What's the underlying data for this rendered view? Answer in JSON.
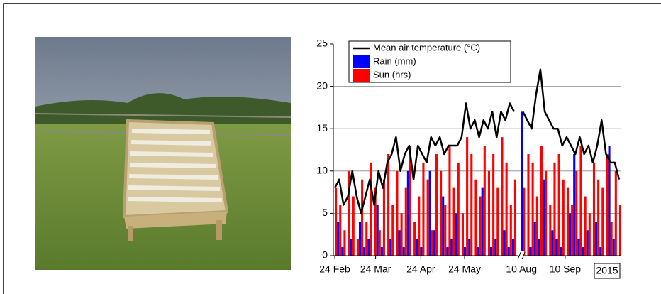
{
  "chart_data": {
    "type": "combo",
    "legend": "upper left",
    "annotation": "2015",
    "xlim": [
      -1,
      196
    ],
    "xticks": [
      {
        "value": 0,
        "label": "24 Feb"
      },
      {
        "value": 28,
        "label": "24 Mar"
      },
      {
        "value": 59,
        "label": "24 Apr"
      },
      {
        "value": 89,
        "label": "24 May"
      },
      {
        "value": 128,
        "label": "10 Aug"
      },
      {
        "value": 158,
        "label": "10 Sep"
      }
    ],
    "ylim": [
      0,
      25
    ],
    "yticks": [
      0,
      5,
      10,
      15,
      20,
      25
    ],
    "grid": true,
    "x": [
      0,
      3,
      6,
      9,
      12,
      15,
      18,
      21,
      24,
      27,
      30,
      33,
      36,
      39,
      42,
      45,
      48,
      51,
      54,
      57,
      60,
      63,
      66,
      69,
      72,
      75,
      78,
      81,
      84,
      87,
      90,
      93,
      96,
      99,
      102,
      105,
      108,
      111,
      114,
      117,
      120,
      123,
      126,
      129,
      132,
      135,
      138,
      141,
      144,
      147,
      150,
      153,
      156,
      159,
      162,
      165,
      168,
      171,
      174,
      177,
      180,
      183,
      186,
      189,
      192,
      195
    ],
    "series": [
      {
        "name": "Mean air temperature (°C)",
        "type": "line",
        "color": "#000000",
        "values": [
          8,
          9,
          6,
          7,
          10,
          7,
          5,
          7,
          9,
          6,
          10,
          8,
          11,
          12,
          14,
          10,
          12,
          13,
          9,
          13,
          12,
          11,
          14,
          13,
          14,
          12,
          13,
          13,
          13,
          14,
          18,
          15,
          16,
          14,
          16,
          15,
          17,
          14,
          17,
          16,
          18,
          17,
          null,
          17,
          16,
          15,
          19,
          22,
          17,
          16,
          15,
          15,
          13,
          14,
          13,
          12,
          14,
          12,
          13,
          11,
          13,
          16,
          12,
          11,
          11,
          9
        ]
      },
      {
        "name": "Rain (mm)",
        "type": "bar",
        "color": "#0000ff",
        "values": [
          0,
          4,
          1,
          0,
          2,
          0,
          4,
          1,
          2,
          0,
          6,
          1,
          0,
          2,
          0,
          3,
          1,
          10,
          0,
          2,
          1,
          0,
          10,
          3,
          0,
          7,
          1,
          2,
          5,
          0,
          1,
          2,
          0,
          1,
          8,
          0,
          1,
          2,
          0,
          3,
          1,
          2,
          null,
          17,
          0,
          1,
          4,
          2,
          9,
          0,
          3,
          2,
          1,
          0,
          5,
          12,
          2,
          1,
          3,
          0,
          4,
          1,
          0,
          13,
          2,
          0
        ]
      },
      {
        "name": "Sun (hrs)",
        "type": "bar",
        "color": "#ff0000",
        "values": [
          8,
          6,
          3,
          10,
          7,
          2,
          9,
          4,
          11,
          8,
          3,
          9,
          12,
          6,
          10,
          5,
          8,
          13,
          4,
          7,
          11,
          9,
          3,
          12,
          10,
          6,
          13,
          8,
          11,
          5,
          14,
          12,
          9,
          7,
          13,
          10,
          12,
          8,
          14,
          11,
          6,
          9,
          null,
          8,
          12,
          11,
          7,
          13,
          10,
          6,
          11,
          12,
          9,
          8,
          6,
          10,
          13,
          7,
          5,
          11,
          9,
          8,
          12,
          4,
          10,
          6
        ]
      }
    ]
  }
}
